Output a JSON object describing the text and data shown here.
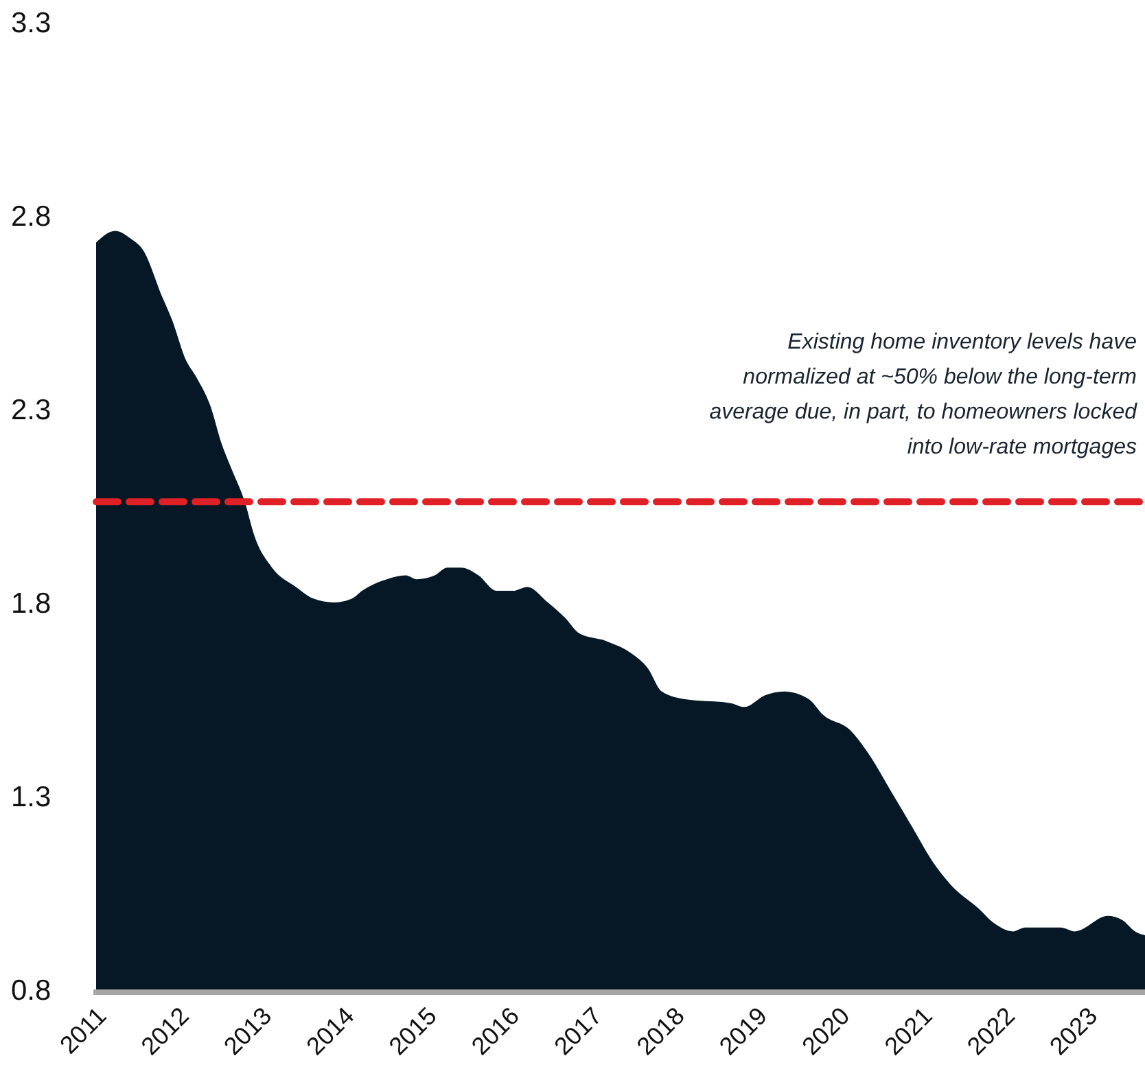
{
  "chart_data": {
    "type": "area",
    "x": [
      2011.0,
      2011.23,
      2011.42,
      2011.57,
      2011.8,
      2011.92,
      2012.08,
      2012.22,
      2012.38,
      2012.52,
      2012.63,
      2012.8,
      2012.92,
      2013.13,
      2013.42,
      2013.63,
      2013.88,
      2014.1,
      2014.22,
      2014.52,
      2014.75,
      2014.88,
      2015.1,
      2015.25,
      2015.42,
      2015.63,
      2015.85,
      2016.05,
      2016.22,
      2016.47,
      2016.68,
      2016.85,
      2017.18,
      2017.47,
      2017.68,
      2017.85,
      2018.13,
      2018.68,
      2018.85,
      2019.1,
      2019.33,
      2019.63,
      2019.8,
      2020.13,
      2020.35,
      2020.63,
      2020.88,
      2021.13,
      2021.35,
      2021.68,
      2021.88,
      2022.1,
      2022.25,
      2022.47,
      2022.68,
      2022.85,
      2023.25,
      2023.42,
      2023.58,
      2023.7
    ],
    "series": [
      {
        "color": "#061826",
        "values": [
          2.73,
          2.76,
          2.74,
          2.71,
          2.59,
          2.53,
          2.43,
          2.38,
          2.31,
          2.21,
          2.15,
          2.06,
          1.97,
          1.89,
          1.84,
          1.81,
          1.8,
          1.81,
          1.83,
          1.86,
          1.87,
          1.86,
          1.87,
          1.89,
          1.89,
          1.87,
          1.83,
          1.83,
          1.84,
          1.8,
          1.76,
          1.72,
          1.7,
          1.67,
          1.63,
          1.57,
          1.55,
          1.54,
          1.53,
          1.56,
          1.57,
          1.55,
          1.51,
          1.47,
          1.41,
          1.31,
          1.22,
          1.13,
          1.07,
          1.01,
          0.97,
          0.95,
          0.96,
          0.96,
          0.96,
          0.95,
          0.99,
          0.98,
          0.95,
          0.94
        ]
      }
    ],
    "xlim": [
      2011,
      2023.7
    ],
    "xticks": [
      2011,
      2012,
      2013,
      2014,
      2015,
      2016,
      2017,
      2018,
      2019,
      2020,
      2021,
      2022,
      2023
    ],
    "ylim": [
      0.8,
      3.3
    ],
    "yticks": [
      0.8,
      1.3,
      1.8,
      2.3,
      2.8,
      3.3
    ],
    "ref_lines": [
      {
        "axis": "y",
        "value": 2.06,
        "color": "#e02027",
        "line_style": "dashed"
      }
    ],
    "annotations": [
      "Existing home inventory levels have\nnormalized at ~50% below the long-term\naverage due, in part, to homeowners locked\ninto low-rate mortgages"
    ]
  }
}
